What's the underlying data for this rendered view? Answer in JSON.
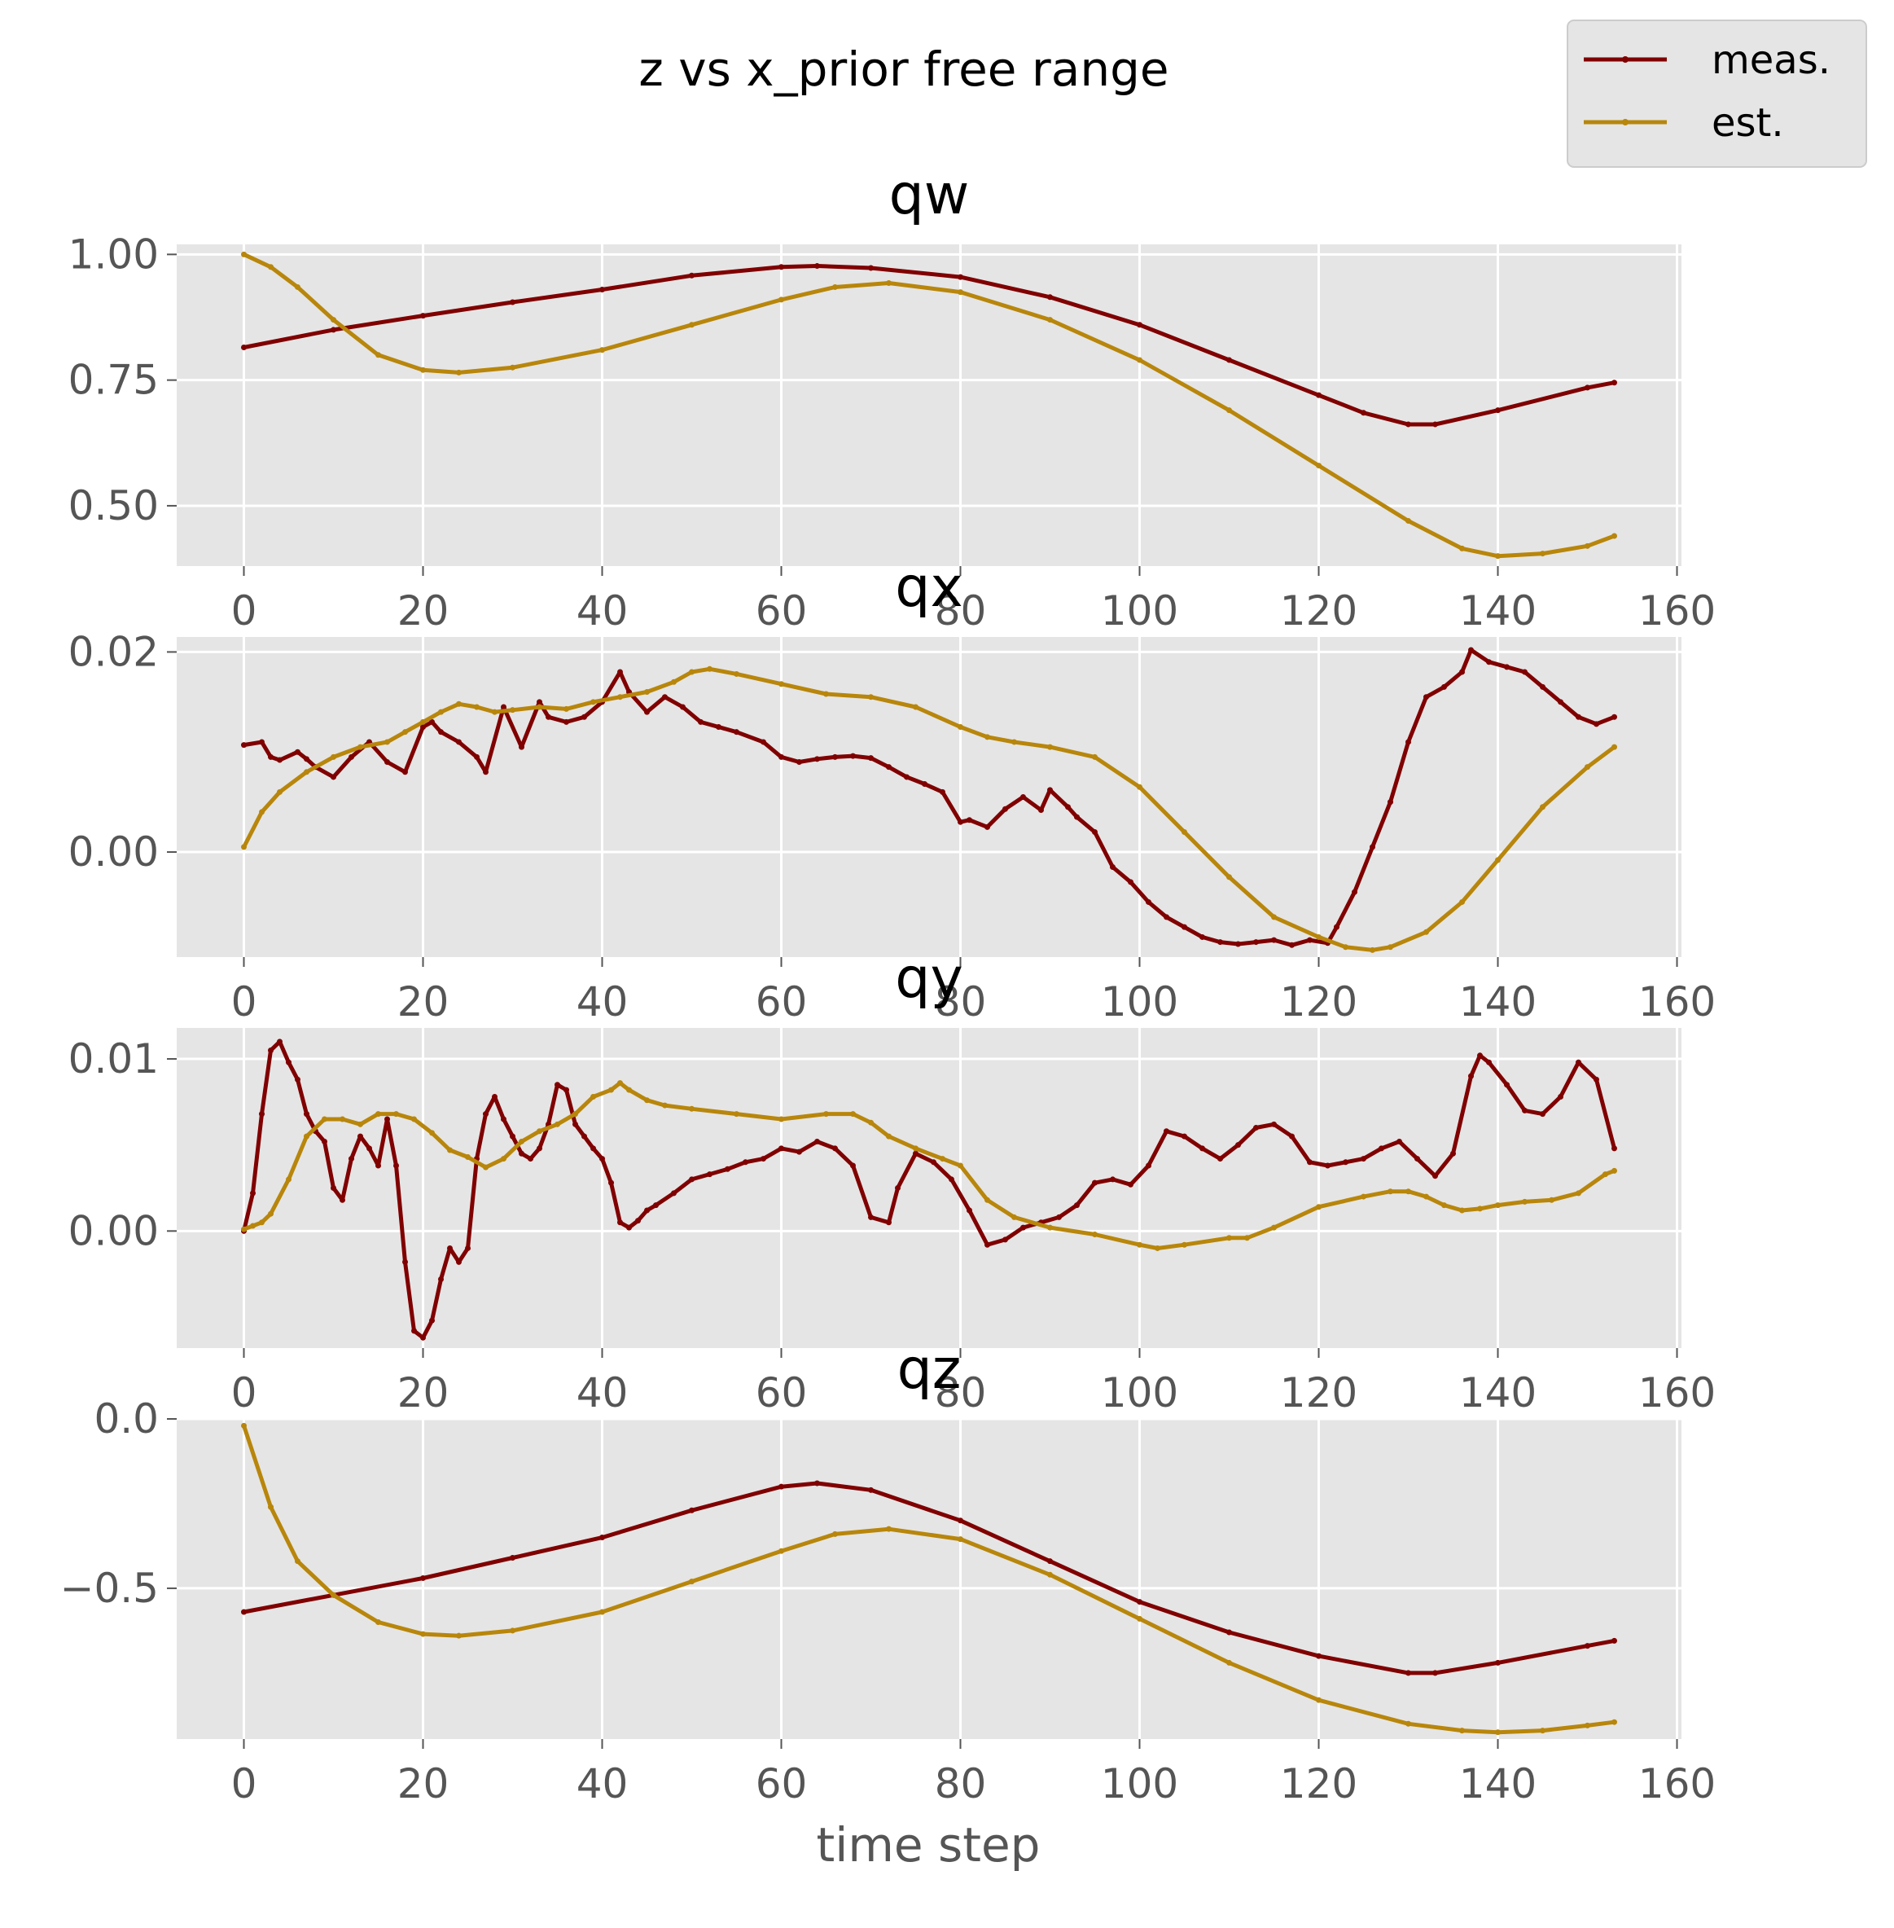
{
  "title": "z vs x_prior free range",
  "xlabel": "time step",
  "legend": {
    "entries": [
      {
        "label": "meas.",
        "color": "#800000"
      },
      {
        "label": "est.",
        "color": "#b8860b"
      }
    ],
    "placement": "top-right"
  },
  "colors": {
    "axes_bg": "#e5e5e5",
    "grid": "#ffffff",
    "tick_label": "#555555"
  },
  "chart_data": [
    {
      "type": "line",
      "title": "qw",
      "xlim": [
        -7.5,
        160.5
      ],
      "ylim": [
        0.38,
        1.02
      ],
      "xticks": [
        0,
        20,
        40,
        60,
        80,
        100,
        120,
        140,
        160
      ],
      "xtick_labels": [
        "0",
        "20",
        "40",
        "60",
        "80",
        "100",
        "120",
        "140",
        "160"
      ],
      "yticks": [
        0.5,
        0.75,
        1.0
      ],
      "ytick_labels": [
        "0.50",
        "0.75",
        "1.00"
      ],
      "grid": true,
      "series": [
        {
          "name": "meas.",
          "color": "#800000",
          "x": [
            0,
            10,
            20,
            30,
            40,
            50,
            60,
            64,
            70,
            80,
            90,
            100,
            110,
            120,
            125,
            130,
            133,
            140,
            150,
            153
          ],
          "y": [
            0.815,
            0.85,
            0.878,
            0.905,
            0.93,
            0.958,
            0.975,
            0.977,
            0.973,
            0.955,
            0.915,
            0.86,
            0.79,
            0.72,
            0.685,
            0.662,
            0.662,
            0.69,
            0.735,
            0.745
          ]
        },
        {
          "name": "est.",
          "color": "#b8860b",
          "x": [
            0,
            3,
            6,
            10,
            15,
            20,
            24,
            30,
            40,
            50,
            60,
            66,
            72,
            80,
            90,
            100,
            110,
            120,
            130,
            136,
            140,
            145,
            150,
            153
          ],
          "y": [
            1.0,
            0.975,
            0.935,
            0.87,
            0.8,
            0.77,
            0.765,
            0.775,
            0.81,
            0.86,
            0.91,
            0.935,
            0.943,
            0.925,
            0.87,
            0.79,
            0.69,
            0.58,
            0.47,
            0.415,
            0.4,
            0.405,
            0.42,
            0.44
          ]
        }
      ]
    },
    {
      "type": "line",
      "title": "qx",
      "xlim": [
        -7.5,
        160.5
      ],
      "ylim": [
        -0.0105,
        0.0215
      ],
      "xticks": [
        0,
        20,
        40,
        60,
        80,
        100,
        120,
        140,
        160
      ],
      "xtick_labels": [
        "0",
        "20",
        "40",
        "60",
        "80",
        "100",
        "120",
        "140",
        "160"
      ],
      "yticks": [
        0.0,
        0.02
      ],
      "ytick_labels": [
        "0.00",
        "0.02"
      ],
      "grid": true,
      "series": [
        {
          "name": "meas.",
          "color": "#800000",
          "x": [
            0,
            2,
            3,
            4,
            6,
            7,
            8,
            10,
            12,
            14,
            16,
            18,
            20,
            21,
            22,
            24,
            26,
            27,
            29,
            31,
            33,
            34,
            36,
            38,
            40,
            42,
            43,
            45,
            47,
            49,
            51,
            53,
            55,
            58,
            60,
            62,
            64,
            66,
            68,
            70,
            72,
            74,
            76,
            78,
            80,
            81,
            83,
            85,
            87,
            89,
            90,
            92,
            93,
            95,
            97,
            99,
            101,
            103,
            105,
            107,
            109,
            111,
            113,
            115,
            117,
            119,
            121,
            122,
            124,
            126,
            128,
            130,
            132,
            134,
            136,
            137,
            139,
            141,
            143,
            145,
            147,
            149,
            151,
            153
          ],
          "y": [
            0.0107,
            0.011,
            0.0095,
            0.0092,
            0.01,
            0.0093,
            0.0085,
            0.0075,
            0.0095,
            0.011,
            0.009,
            0.008,
            0.0125,
            0.013,
            0.012,
            0.011,
            0.0095,
            0.008,
            0.0145,
            0.0105,
            0.015,
            0.0135,
            0.013,
            0.0135,
            0.015,
            0.018,
            0.016,
            0.014,
            0.0155,
            0.0145,
            0.013,
            0.0125,
            0.012,
            0.011,
            0.0095,
            0.009,
            0.0093,
            0.0095,
            0.0096,
            0.0094,
            0.0085,
            0.0075,
            0.0068,
            0.006,
            0.003,
            0.0032,
            0.0025,
            0.0043,
            0.0055,
            0.0042,
            0.0062,
            0.0045,
            0.0035,
            0.002,
            -0.0015,
            -0.003,
            -0.005,
            -0.0065,
            -0.0075,
            -0.0085,
            -0.009,
            -0.0092,
            -0.009,
            -0.0088,
            -0.0093,
            -0.0088,
            -0.0091,
            -0.0075,
            -0.004,
            0.0005,
            0.005,
            0.011,
            0.0155,
            0.0165,
            0.018,
            0.0202,
            0.019,
            0.0185,
            0.018,
            0.0165,
            0.015,
            0.0135,
            0.0128,
            0.0135
          ]
        },
        {
          "name": "est.",
          "color": "#b8860b",
          "x": [
            0,
            2,
            4,
            7,
            10,
            13,
            16,
            18,
            20,
            22,
            24,
            26,
            28,
            30,
            33,
            36,
            39,
            42,
            45,
            48,
            50,
            52,
            55,
            60,
            65,
            70,
            75,
            80,
            83,
            86,
            90,
            95,
            100,
            105,
            110,
            115,
            120,
            123,
            126,
            128,
            132,
            136,
            140,
            145,
            150,
            153
          ],
          "y": [
            0.0005,
            0.004,
            0.006,
            0.008,
            0.0095,
            0.0105,
            0.011,
            0.012,
            0.013,
            0.014,
            0.0148,
            0.0145,
            0.014,
            0.0142,
            0.0145,
            0.0143,
            0.015,
            0.0155,
            0.016,
            0.017,
            0.018,
            0.0183,
            0.0178,
            0.0168,
            0.0158,
            0.0155,
            0.0145,
            0.0125,
            0.0115,
            0.011,
            0.0105,
            0.0095,
            0.0065,
            0.002,
            -0.0025,
            -0.0065,
            -0.0085,
            -0.0095,
            -0.0098,
            -0.0095,
            -0.008,
            -0.005,
            -0.0008,
            0.0045,
            0.0085,
            0.0105
          ]
        }
      ]
    },
    {
      "type": "line",
      "title": "qy",
      "xlim": [
        -7.5,
        160.5
      ],
      "ylim": [
        -0.0068,
        0.0118
      ],
      "xticks": [
        0,
        20,
        40,
        60,
        80,
        100,
        120,
        140,
        160
      ],
      "xtick_labels": [
        "0",
        "20",
        "40",
        "60",
        "80",
        "100",
        "120",
        "140",
        "160"
      ],
      "yticks": [
        0.0,
        0.01
      ],
      "ytick_labels": [
        "0.00",
        "0.01"
      ],
      "grid": true,
      "series": [
        {
          "name": "meas.",
          "color": "#800000",
          "x": [
            0,
            1,
            2,
            3,
            4,
            5,
            6,
            7,
            8,
            9,
            10,
            11,
            12,
            13,
            14,
            15,
            16,
            17,
            18,
            19,
            20,
            21,
            22,
            23,
            24,
            25,
            26,
            27,
            28,
            29,
            30,
            31,
            32,
            33,
            34,
            35,
            36,
            37,
            38,
            39,
            40,
            41,
            42,
            43,
            44,
            45,
            46,
            48,
            50,
            52,
            54,
            56,
            58,
            60,
            62,
            64,
            66,
            68,
            70,
            72,
            73,
            75,
            77,
            79,
            81,
            83,
            85,
            87,
            89,
            91,
            93,
            95,
            97,
            99,
            101,
            103,
            105,
            107,
            109,
            111,
            113,
            115,
            117,
            119,
            121,
            123,
            125,
            127,
            129,
            131,
            133,
            135,
            137,
            138,
            139,
            141,
            143,
            145,
            147,
            149,
            151,
            153
          ],
          "y": [
            0.0,
            0.0022,
            0.0068,
            0.0105,
            0.011,
            0.0098,
            0.0088,
            0.0068,
            0.0058,
            0.0052,
            0.0025,
            0.0018,
            0.0042,
            0.0055,
            0.0048,
            0.0038,
            0.0065,
            0.0038,
            -0.0018,
            -0.0058,
            -0.0062,
            -0.0052,
            -0.0028,
            -0.001,
            -0.0018,
            -0.001,
            0.0042,
            0.0068,
            0.0078,
            0.0065,
            0.0055,
            0.0045,
            0.0042,
            0.0048,
            0.0062,
            0.0085,
            0.0082,
            0.0062,
            0.0055,
            0.0048,
            0.0042,
            0.0028,
            0.0005,
            0.0002,
            0.0006,
            0.0012,
            0.0015,
            0.0022,
            0.003,
            0.0033,
            0.0036,
            0.004,
            0.0042,
            0.0048,
            0.0046,
            0.0052,
            0.0048,
            0.0038,
            0.0008,
            0.0005,
            0.0025,
            0.0045,
            0.004,
            0.003,
            0.0012,
            -0.0008,
            -0.0005,
            0.0002,
            0.0005,
            0.0008,
            0.0015,
            0.0028,
            0.003,
            0.0027,
            0.0038,
            0.0058,
            0.0055,
            0.0048,
            0.0042,
            0.005,
            0.006,
            0.0062,
            0.0055,
            0.004,
            0.0038,
            0.004,
            0.0042,
            0.0048,
            0.0052,
            0.0042,
            0.0032,
            0.0045,
            0.009,
            0.0102,
            0.0098,
            0.0085,
            0.007,
            0.0068,
            0.0078,
            0.0098,
            0.0088,
            0.0048
          ]
        },
        {
          "name": "est.",
          "color": "#b8860b",
          "x": [
            0,
            1,
            2,
            3,
            5,
            7,
            9,
            11,
            13,
            15,
            17,
            19,
            21,
            23,
            25,
            27,
            29,
            31,
            33,
            35,
            37,
            39,
            41,
            42,
            43,
            45,
            47,
            50,
            55,
            60,
            65,
            68,
            70,
            72,
            75,
            78,
            80,
            83,
            86,
            90,
            95,
            100,
            102,
            105,
            110,
            112,
            115,
            120,
            125,
            128,
            130,
            132,
            134,
            136,
            138,
            140,
            143,
            146,
            149,
            152,
            153
          ],
          "y": [
            0.0001,
            0.0003,
            0.0005,
            0.001,
            0.003,
            0.0055,
            0.0065,
            0.0065,
            0.0062,
            0.0068,
            0.0068,
            0.0065,
            0.0057,
            0.0047,
            0.0043,
            0.0037,
            0.0042,
            0.0052,
            0.0058,
            0.0062,
            0.0068,
            0.0078,
            0.0082,
            0.0086,
            0.0082,
            0.0076,
            0.0073,
            0.0071,
            0.0068,
            0.0065,
            0.0068,
            0.0068,
            0.0063,
            0.0055,
            0.0048,
            0.0042,
            0.0038,
            0.0018,
            0.0008,
            0.0002,
            -0.0002,
            -0.0008,
            -0.001,
            -0.0008,
            -0.0004,
            -0.0004,
            0.0002,
            0.0014,
            0.002,
            0.0023,
            0.0023,
            0.002,
            0.0015,
            0.0012,
            0.0013,
            0.0015,
            0.0017,
            0.0018,
            0.0022,
            0.0033,
            0.0035
          ]
        }
      ]
    },
    {
      "type": "line",
      "title": "qz",
      "xlim": [
        -7.5,
        160.5
      ],
      "ylim": [
        -0.945,
        0.0
      ],
      "xticks": [
        0,
        20,
        40,
        60,
        80,
        100,
        120,
        140,
        160
      ],
      "xtick_labels": [
        "0",
        "20",
        "40",
        "60",
        "80",
        "100",
        "120",
        "140",
        "160"
      ],
      "yticks": [
        -0.5,
        0.0
      ],
      "ytick_labels": [
        "−0.5",
        "0.0"
      ],
      "grid": true,
      "series": [
        {
          "name": "meas.",
          "color": "#800000",
          "x": [
            0,
            10,
            20,
            30,
            40,
            50,
            60,
            64,
            70,
            80,
            90,
            100,
            110,
            120,
            130,
            133,
            140,
            150,
            153
          ],
          "y": [
            -0.57,
            -0.52,
            -0.47,
            -0.41,
            -0.35,
            -0.27,
            -0.2,
            -0.19,
            -0.21,
            -0.3,
            -0.42,
            -0.54,
            -0.63,
            -0.7,
            -0.75,
            -0.75,
            -0.72,
            -0.67,
            -0.655
          ]
        },
        {
          "name": "est.",
          "color": "#b8860b",
          "x": [
            0,
            3,
            6,
            10,
            15,
            20,
            24,
            30,
            40,
            50,
            60,
            66,
            72,
            80,
            90,
            100,
            110,
            120,
            130,
            136,
            140,
            145,
            150,
            153
          ],
          "y": [
            -0.02,
            -0.26,
            -0.42,
            -0.52,
            -0.6,
            -0.635,
            -0.64,
            -0.625,
            -0.57,
            -0.48,
            -0.39,
            -0.34,
            -0.325,
            -0.355,
            -0.46,
            -0.59,
            -0.72,
            -0.83,
            -0.9,
            -0.92,
            -0.925,
            -0.92,
            -0.905,
            -0.895
          ]
        }
      ]
    }
  ]
}
